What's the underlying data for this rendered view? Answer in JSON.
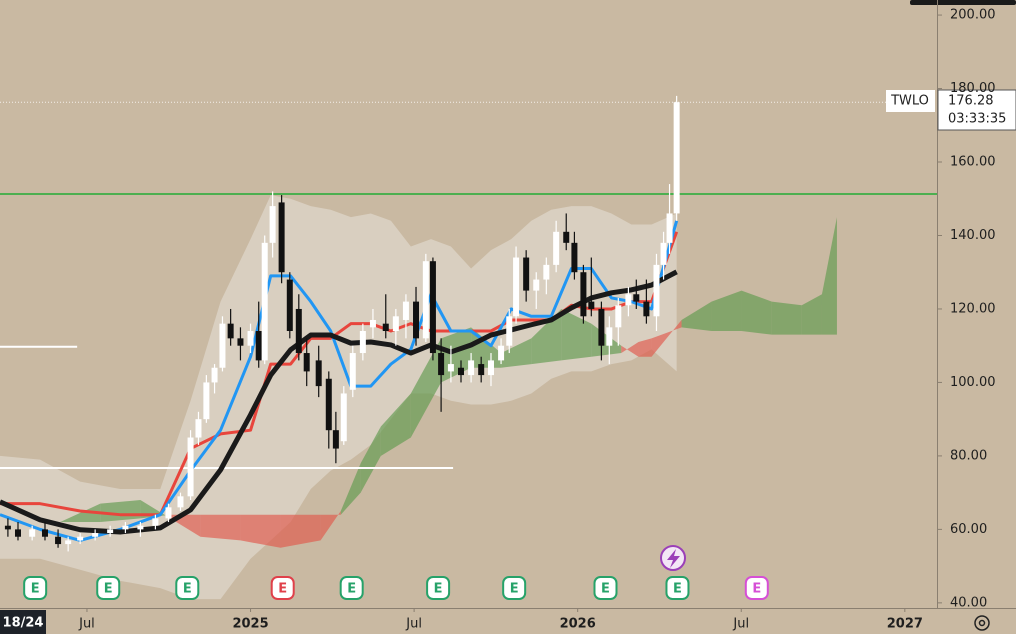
{
  "chart_data": {
    "type": "candlestick",
    "symbol": "TWLO",
    "countdown": "03:33:35",
    "date_badge": "18/24",
    "xlim": [
      2.81,
      37.18
    ],
    "xticks": [
      {
        "value": 6,
        "label": "Jul"
      },
      {
        "value": 12,
        "label": "2025"
      },
      {
        "value": 18,
        "label": "Jul"
      },
      {
        "value": 24,
        "label": "2026"
      },
      {
        "value": 30,
        "label": "Jul"
      },
      {
        "value": 36,
        "label": "2027"
      }
    ],
    "ylim": [
      38.6,
      204.1
    ],
    "yticks": [
      {
        "value": 40,
        "label": "40.00"
      },
      {
        "value": 60,
        "label": "60.00"
      },
      {
        "value": 80,
        "label": "80.00"
      },
      {
        "value": 100,
        "label": "100.00"
      },
      {
        "value": 120,
        "label": "120.00"
      },
      {
        "value": 140,
        "label": "140.00"
      },
      {
        "value": 160,
        "label": "160.00"
      },
      {
        "value": 180,
        "label": "180.00"
      },
      {
        "value": 200,
        "label": "200.00"
      }
    ],
    "up_color": "#ffffff",
    "down_color": "#111111",
    "candles": {
      "x": [
        3.1,
        3.47,
        3.99,
        4.46,
        4.94,
        5.31,
        5.75,
        6.3,
        6.85,
        7.41,
        7.96,
        8.51,
        8.99,
        9.43,
        9.8,
        10.09,
        10.38,
        10.68,
        10.97,
        11.27,
        11.63,
        12.0,
        12.3,
        12.52,
        12.81,
        13.14,
        13.44,
        13.77,
        14.06,
        14.5,
        14.87,
        15.13,
        15.42,
        15.75,
        16.12,
        16.49,
        16.96,
        17.33,
        17.7,
        18.07,
        18.43,
        18.69,
        18.99,
        19.35,
        19.72,
        20.09,
        20.46,
        20.82,
        21.19,
        21.49,
        21.74,
        22.11,
        22.48,
        22.85,
        23.21,
        23.58,
        23.88,
        24.21,
        24.5,
        24.87,
        25.16,
        25.49,
        25.86,
        26.15,
        26.52,
        26.89,
        27.15,
        27.37,
        27.63
      ],
      "open": [
        61,
        60,
        58,
        60,
        58,
        56,
        57,
        58,
        59,
        60,
        60,
        61,
        63,
        66,
        69,
        85,
        90,
        100,
        104,
        116,
        112,
        110,
        114,
        106,
        138,
        149,
        128,
        120,
        108,
        106,
        101,
        87,
        84,
        98,
        108,
        115,
        116,
        114,
        117,
        122,
        112,
        133,
        108,
        103,
        104,
        102,
        105,
        102,
        106,
        110,
        118,
        134,
        125,
        128,
        132,
        141,
        138,
        130,
        122,
        120,
        110,
        115,
        121,
        124,
        122,
        118,
        132,
        138,
        146
      ],
      "high": [
        63,
        62,
        61,
        62,
        60,
        58,
        59,
        60,
        61,
        62,
        62,
        64,
        67,
        70,
        87,
        92,
        102,
        105,
        118,
        120,
        115,
        116,
        122,
        140,
        152,
        151,
        130,
        124,
        112,
        110,
        103,
        92,
        99,
        110,
        116,
        120,
        124,
        120,
        124,
        126,
        135,
        134,
        112,
        110,
        106,
        108,
        107,
        108,
        112,
        120,
        137,
        136,
        130,
        134,
        144,
        146,
        141,
        132,
        134,
        122,
        118,
        123,
        126,
        128,
        128,
        135,
        141,
        154,
        178
      ],
      "low": [
        58,
        57,
        57,
        57,
        55,
        54,
        56,
        57,
        58,
        59,
        58,
        60,
        62,
        65,
        68,
        83,
        89,
        97,
        103,
        110,
        106,
        108,
        104,
        105,
        134,
        127,
        112,
        106,
        99,
        96,
        82,
        78,
        83,
        96,
        106,
        112,
        112,
        110,
        112,
        110,
        111,
        106,
        92,
        100,
        100,
        100,
        100,
        99,
        105,
        108,
        116,
        122,
        120,
        124,
        130,
        136,
        128,
        116,
        118,
        106,
        105,
        110,
        118,
        120,
        116,
        114,
        128,
        135,
        144
      ],
      "close": [
        60,
        58,
        60,
        58,
        56,
        57,
        58,
        59,
        60,
        61,
        61,
        63,
        66,
        69,
        85,
        90,
        100,
        104,
        116,
        112,
        110,
        114,
        106,
        138,
        148,
        130,
        114,
        108,
        103,
        99,
        87,
        82,
        97,
        108,
        114,
        117,
        114,
        118,
        122,
        112,
        133,
        108,
        102,
        105,
        102,
        106,
        102,
        106,
        110,
        118,
        134,
        125,
        128,
        132,
        141,
        138,
        130,
        118,
        120,
        110,
        115,
        121,
        124,
        122,
        118,
        132,
        138,
        146,
        176.28
      ]
    },
    "line_x": [
      2.81,
      4.28,
      5.75,
      7.22,
      8.69,
      9.8,
      10.9,
      12.0,
      12.74,
      13.47,
      14.21,
      14.94,
      15.68,
      16.41,
      17.15,
      17.88,
      18.62,
      19.35,
      20.09,
      20.82,
      21.56,
      22.3,
      23.03,
      23.77,
      24.5,
      25.24,
      25.97,
      26.71,
      27.63
    ],
    "envelope": {
      "color": "#e4ded4",
      "upper": [
        80,
        79,
        73,
        71,
        71,
        95,
        122,
        139,
        151,
        150,
        148,
        147,
        145,
        146,
        144,
        137,
        139,
        137,
        131,
        136,
        139,
        144,
        147,
        148,
        148,
        146,
        143,
        143,
        146
      ],
      "lower": [
        52,
        52,
        49,
        46,
        44,
        41,
        41,
        52,
        57,
        62,
        71,
        76,
        79,
        83,
        90,
        97,
        97,
        95,
        94,
        94,
        95,
        97,
        101,
        103,
        103,
        105,
        106,
        109,
        103
      ]
    },
    "overlays": [
      {
        "color": "#e8453c",
        "width": 3,
        "values": [
          67,
          67,
          65,
          64,
          64,
          82,
          86,
          87,
          105,
          105,
          112,
          112,
          116,
          116,
          114,
          116,
          114,
          114,
          114,
          114,
          117,
          117,
          117,
          121,
          120,
          120,
          122,
          122,
          141
        ]
      },
      {
        "color": "#2196f3",
        "width": 3,
        "values": [
          64,
          60,
          57,
          60,
          64,
          76,
          87,
          107,
          129,
          129,
          122,
          114,
          99,
          99,
          105,
          109,
          124,
          114,
          114,
          110,
          120,
          118,
          118,
          131,
          131,
          123,
          122,
          120,
          144
        ]
      },
      {
        "color": "#1a1a1a",
        "width": 5,
        "values": [
          67.5,
          62.6,
          59.9,
          59.3,
          60.4,
          65.3,
          76.2,
          91.2,
          102.0,
          108.9,
          112.9,
          112.9,
          110.7,
          111.0,
          110.2,
          108.0,
          110.2,
          108.3,
          110.2,
          112.9,
          114.3,
          115.7,
          117.0,
          120.3,
          123.0,
          124.4,
          125.2,
          126.5,
          130.1
        ]
      }
    ],
    "cloud": {
      "up_color": "#5f9a4f",
      "down_color": "#e0584c",
      "x": [
        2.81,
        5.02,
        6.49,
        7.96,
        9.06,
        10.16,
        11.63,
        13.1,
        14.57,
        15.31,
        16.04,
        16.78,
        17.88,
        18.99,
        20.09,
        21.19,
        22.3,
        23.4,
        24.5,
        25.6,
        26.23,
        26.71,
        27.81,
        28.91,
        30.01,
        31.12,
        32.22,
        32.96,
        33.51
      ],
      "span_a": [
        62,
        62,
        67,
        68,
        63,
        58,
        57,
        55,
        57,
        65,
        78,
        88,
        97,
        112,
        115,
        108,
        112,
        120,
        116,
        110,
        107,
        107,
        117,
        122,
        125,
        122,
        121,
        124,
        145
      ],
      "span_b": [
        62,
        62,
        62,
        63,
        64,
        64,
        64,
        64,
        64,
        64,
        70,
        80,
        85,
        100,
        104,
        104,
        105,
        106,
        107,
        108,
        111,
        112,
        115,
        114,
        114,
        113,
        113,
        113,
        113
      ]
    },
    "price_lines": [
      {
        "value": 151.3,
        "color": "#4caf50",
        "to": 37.18
      },
      {
        "value": 109.7,
        "color": "#ffffff",
        "to": 5.64
      },
      {
        "value": 76.7,
        "color": "#ffffff",
        "to": 19.43
      }
    ],
    "events": [
      {
        "x": 4.1,
        "label": "E",
        "color": "#26a269"
      },
      {
        "x": 6.78,
        "label": "E",
        "color": "#26a269"
      },
      {
        "x": 9.68,
        "label": "E",
        "color": "#26a269"
      },
      {
        "x": 13.18,
        "label": "E",
        "color": "#e0404a"
      },
      {
        "x": 15.71,
        "label": "E",
        "color": "#26a269"
      },
      {
        "x": 18.88,
        "label": "E",
        "color": "#26a269"
      },
      {
        "x": 21.67,
        "label": "E",
        "color": "#26a269"
      },
      {
        "x": 25.02,
        "label": "E",
        "color": "#26a269"
      },
      {
        "x": 27.66,
        "label": "E",
        "color": "#26a269"
      },
      {
        "x": 30.57,
        "label": "E",
        "color": "#d64fd6"
      }
    ]
  }
}
